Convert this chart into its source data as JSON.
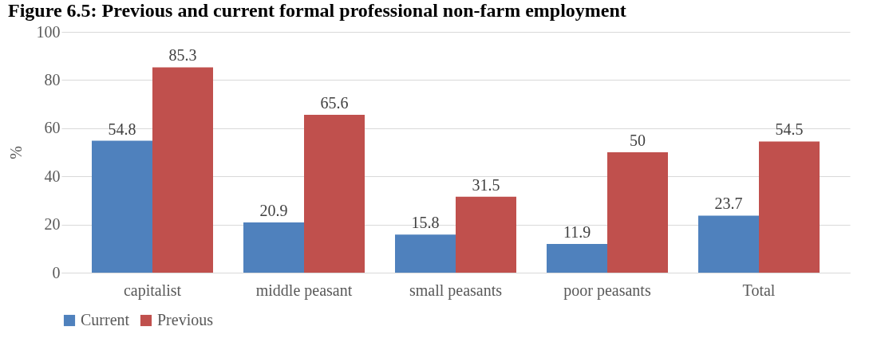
{
  "chart_data": {
    "type": "bar",
    "title": "Figure 6.5: Previous and current formal professional non-farm employment",
    "ylabel": "%",
    "categories": [
      "capitalist",
      "middle peasant",
      "small peasants",
      "poor peasants",
      "Total"
    ],
    "series": [
      {
        "name": "Current",
        "color": "#4f81bd",
        "values": [
          54.8,
          20.9,
          15.8,
          11.9,
          23.7
        ]
      },
      {
        "name": "Previous",
        "color": "#c0504d",
        "values": [
          85.3,
          65.6,
          31.5,
          50,
          54.5
        ]
      }
    ],
    "ylim": [
      0,
      100
    ],
    "yticks": [
      0,
      20,
      40,
      60,
      80,
      100
    ],
    "grid": "y",
    "legend": "bottom",
    "data_labels": true
  }
}
